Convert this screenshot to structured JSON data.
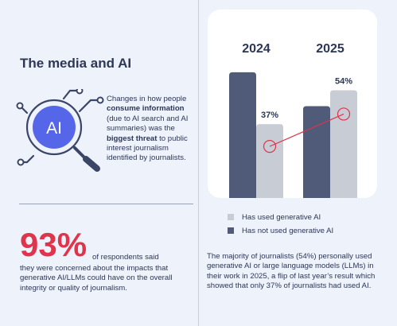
{
  "left": {
    "title": "The media and AI",
    "icon_label": "AI",
    "desc": {
      "p1": "Changes in how people ",
      "b1": "consume information",
      "p2": " (due to AI search and AI summaries) was the ",
      "b2": "biggest threat",
      "p3": " to public interest journalism identified by journalists."
    },
    "stat": {
      "value": "93%",
      "tail": "of respondents said",
      "rest": "they were concerned about the impacts that generative AI/LLMs could have on the overall integrity or quality of journalism."
    }
  },
  "colors": {
    "used": "#c8ccd5",
    "not_used": "#505a79",
    "accent": "#e0334c",
    "icon_circle": "#5566e8"
  },
  "chart_data": {
    "type": "bar",
    "categories": [
      "2024",
      "2025"
    ],
    "ylim": [
      0,
      100
    ],
    "series": [
      {
        "name": "Has not used generative AI",
        "values": [
          63,
          46
        ]
      },
      {
        "name": "Has used generative AI",
        "values": [
          37,
          54
        ]
      }
    ],
    "data_labels": [
      "37%",
      "54%"
    ],
    "legend": [
      {
        "label": "Has used generative AI"
      },
      {
        "label": "Has not used generative AI"
      }
    ],
    "legend_position": "bottom"
  },
  "right_text": "The majority of journalists (54%) personally used generative AI or large language models (LLMs) in their work in 2025, a flip of last year’s result which showed that only 37% of journalists had used AI."
}
